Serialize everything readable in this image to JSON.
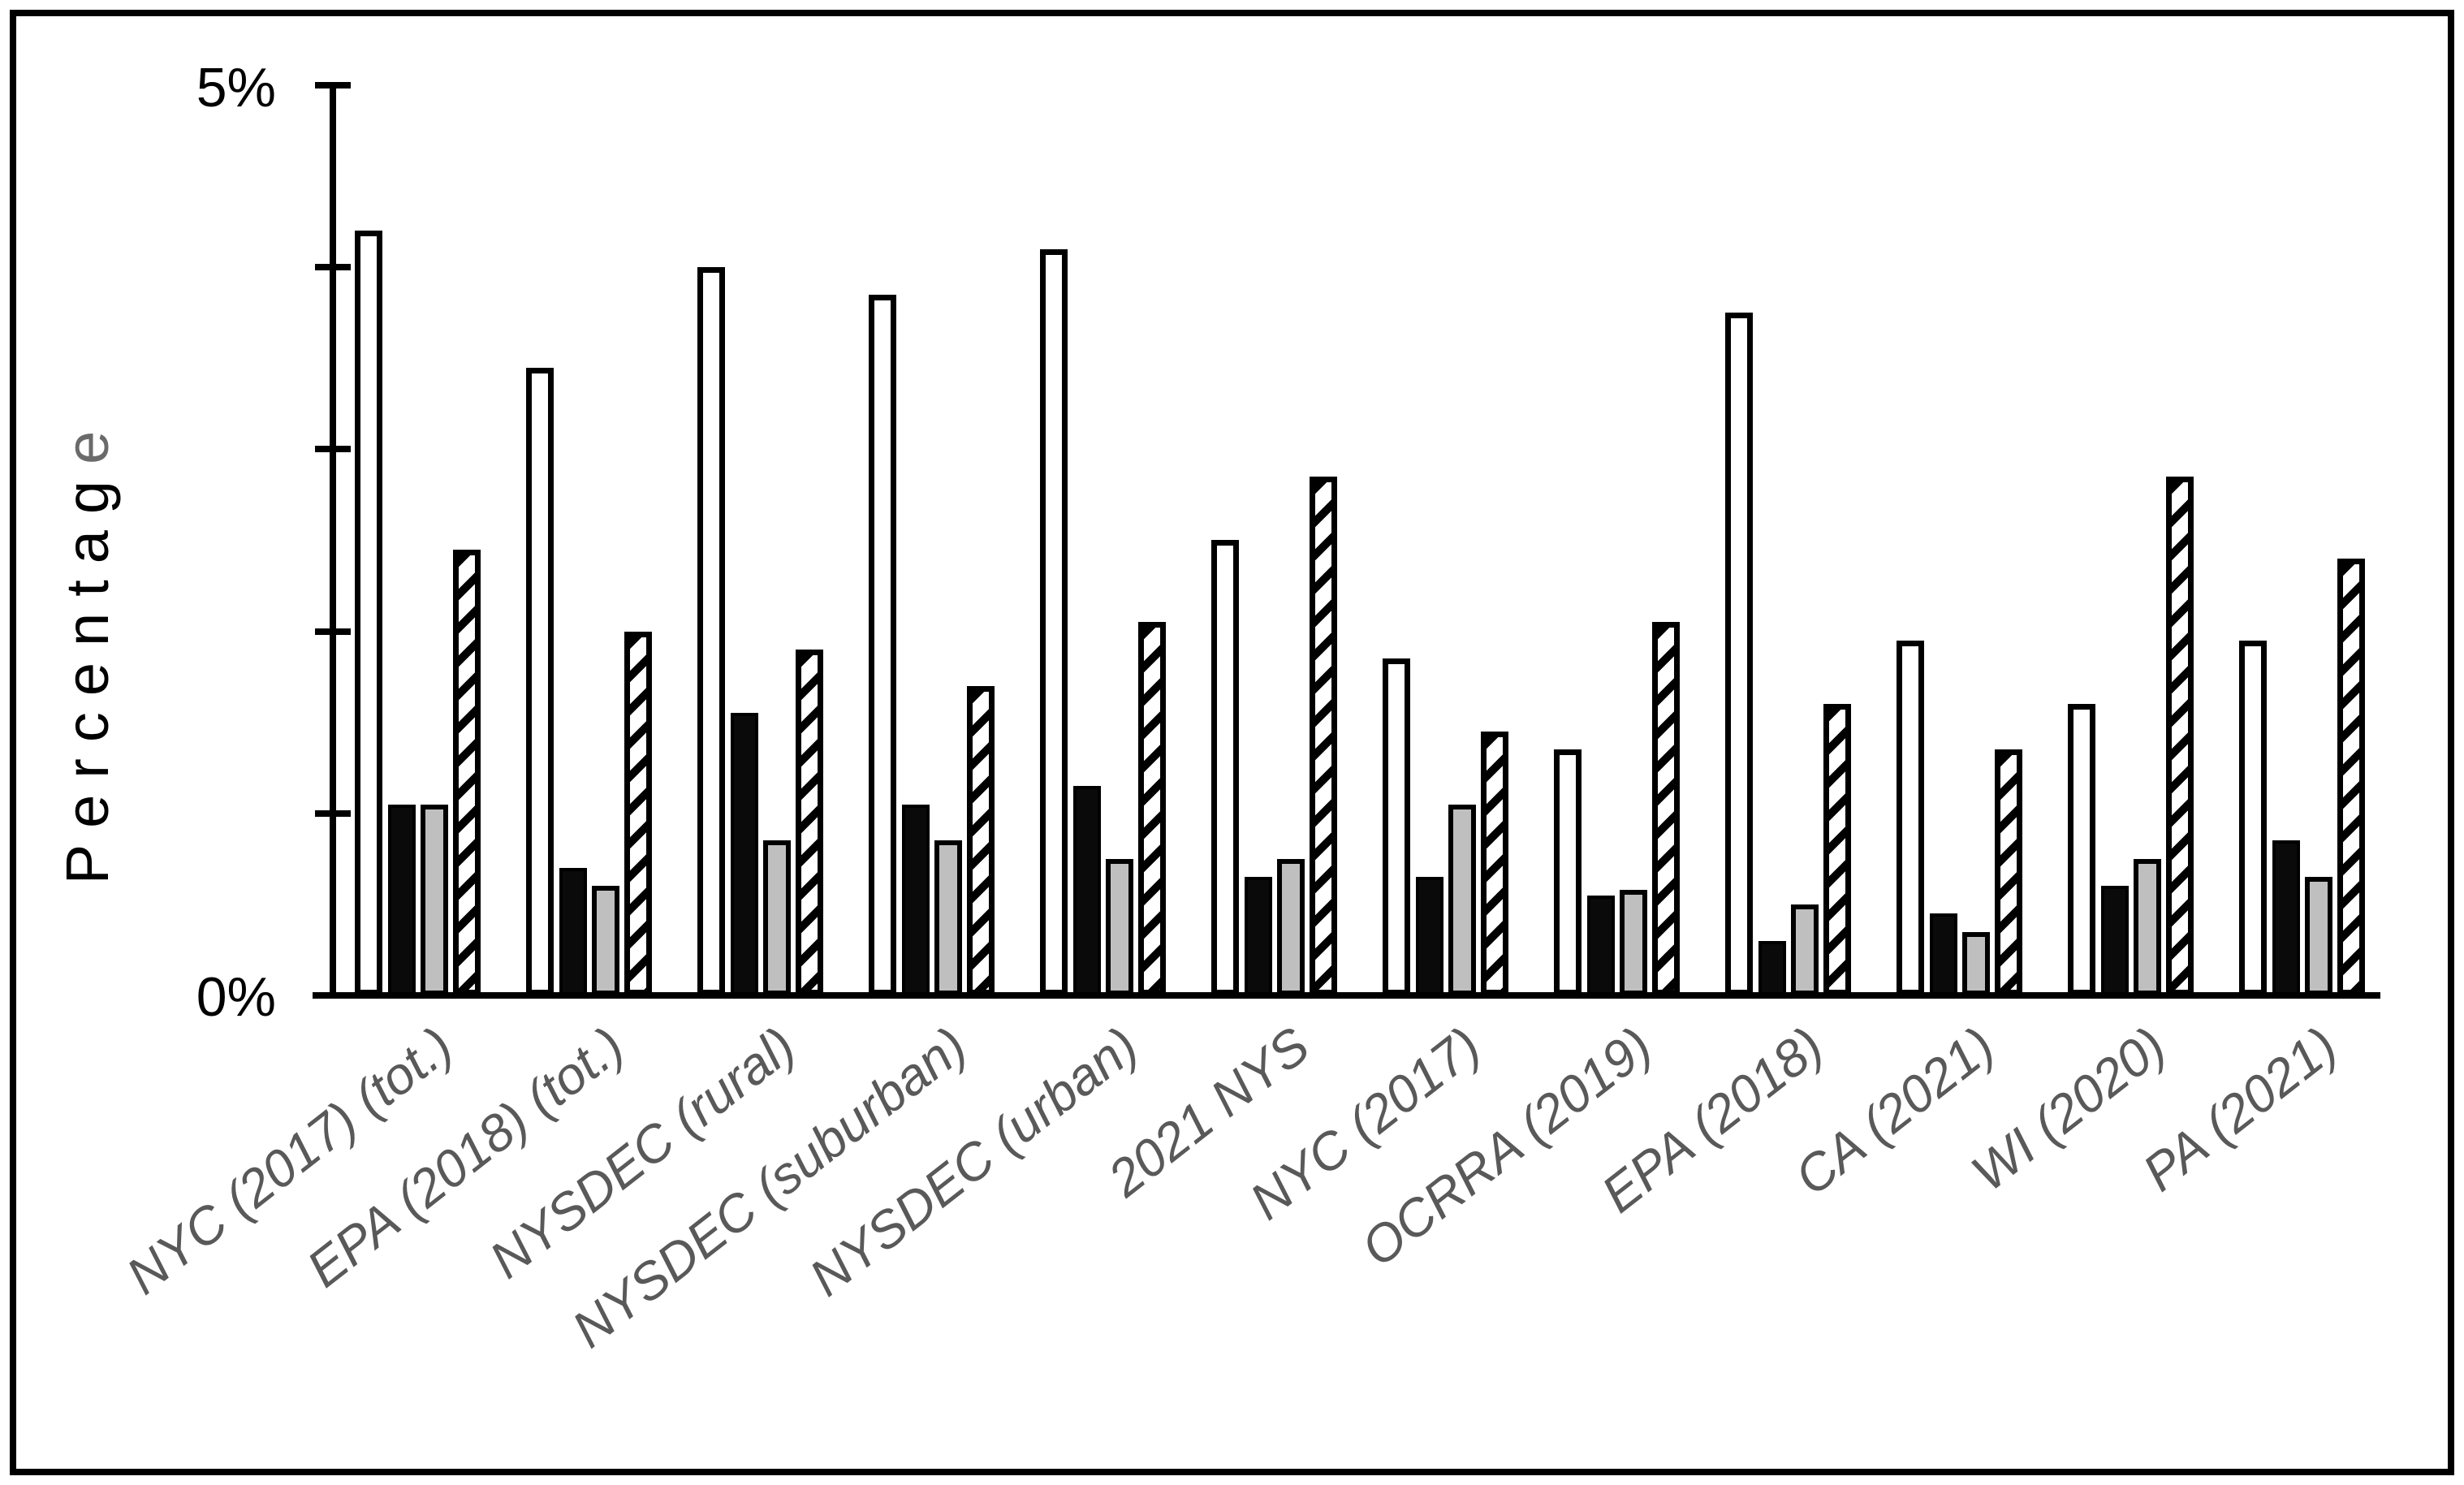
{
  "y_axis": {
    "title_main": "Percentag",
    "title_last_letter": "e",
    "title_full": "Percentage",
    "top_tick_label": "5%",
    "bottom_tick_label": "0%"
  },
  "colors": {
    "axis": "#000000",
    "bar_white_fill": "#ffffff",
    "bar_black_fill": "#0a0a0a",
    "bar_gray_fill": "#bfbfbf",
    "hatch_stripe": "#000000",
    "category_label": "#595959",
    "y_title_last_letter": "#6a6a6a"
  },
  "chart_data": {
    "type": "bar",
    "title": "",
    "xlabel": "",
    "ylabel": "Percentage",
    "ylim": [
      0,
      5
    ],
    "y_tick_interval": 1,
    "y_tick_labels_shown": [
      "0%",
      "5%"
    ],
    "grid": false,
    "legend": "none",
    "categories": [
      "NYC (2017) (tot.)",
      "EPA (2018) (tot.)",
      "NYSDEC (rural)",
      "NYSDEC (suburban)",
      "NYSDEC (urban)",
      "2021 NYS",
      "NYC (2017)",
      "OCRRA (2019)",
      "EPA (2018)",
      "CA (2021)",
      "WI (2020)",
      "PA (2021)"
    ],
    "series": [
      {
        "name": "white",
        "appearance": "white bar, black outline",
        "values": [
          4.2,
          3.45,
          4.0,
          3.85,
          4.1,
          2.5,
          1.85,
          1.35,
          3.75,
          1.95,
          1.6,
          1.95
        ]
      },
      {
        "name": "black",
        "appearance": "solid black bar",
        "values": [
          1.05,
          0.7,
          1.55,
          1.05,
          1.15,
          0.65,
          0.65,
          0.55,
          0.3,
          0.45,
          0.6,
          0.85
        ]
      },
      {
        "name": "gray",
        "appearance": "light gray bar, black outline",
        "values": [
          1.05,
          0.6,
          0.85,
          0.85,
          0.75,
          0.75,
          1.05,
          0.58,
          0.5,
          0.35,
          0.75,
          0.65
        ]
      },
      {
        "name": "hatched",
        "appearance": "white bar with black diagonal stripes",
        "values": [
          2.45,
          2.0,
          1.9,
          1.7,
          2.05,
          2.85,
          1.45,
          2.05,
          1.6,
          1.35,
          2.85,
          2.4
        ]
      }
    ]
  }
}
